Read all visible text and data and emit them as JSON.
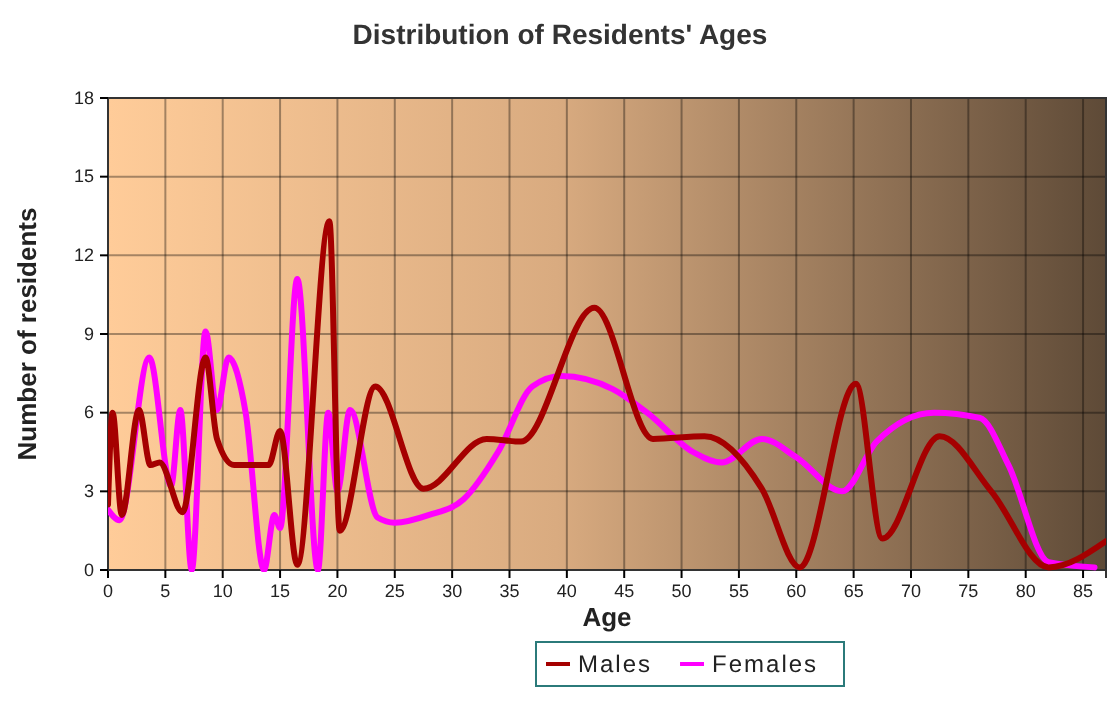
{
  "chart_data": {
    "type": "line",
    "title": "Distribution of Residents' Ages",
    "xlabel": "Age",
    "ylabel": "Number of residents",
    "xlim": [
      0,
      87
    ],
    "xticks": [
      0,
      5,
      10,
      15,
      20,
      25,
      30,
      35,
      40,
      45,
      50,
      55,
      60,
      65,
      70,
      75,
      80,
      85
    ],
    "ylim": [
      0,
      18
    ],
    "yticks": [
      0,
      3,
      6,
      9,
      12,
      15,
      18
    ],
    "grid": true,
    "legend": "bottom",
    "series": [
      {
        "name": "Males",
        "color": "#a50000",
        "x": [
          0,
          0.4,
          1.2,
          2.7,
          3.7,
          4.5,
          6.5,
          8.5,
          9.5,
          11,
          14,
          15,
          16.5,
          19.3,
          20.2,
          23.3,
          27.5,
          33,
          36,
          42.4,
          47.5,
          52,
          57,
          60.3,
          65.2,
          67.5,
          72.5,
          77,
          82,
          87
        ],
        "values": [
          2.5,
          6,
          2.1,
          6.1,
          4,
          4.1,
          2.2,
          8.1,
          5,
          4,
          4,
          5.3,
          0.2,
          13.3,
          1.5,
          7,
          3.1,
          5,
          4.9,
          10,
          5,
          5.1,
          3.1,
          0.1,
          7.1,
          1.2,
          5.1,
          3,
          0.1,
          1.1
        ]
      },
      {
        "name": "Females",
        "color": "#ff00ff",
        "x": [
          0,
          1,
          3.6,
          5.5,
          6.3,
          7.3,
          8.5,
          9.5,
          10.5,
          12,
          13.6,
          14.5,
          15,
          16.5,
          18.3,
          19.2,
          20,
          21.1,
          23.5,
          25,
          28,
          31,
          34,
          37,
          39.5,
          44,
          47,
          51,
          53.5,
          57,
          60,
          64,
          67,
          72,
          76,
          78.5,
          82,
          86
        ],
        "values": [
          2.3,
          1.9,
          8.1,
          3.2,
          6.1,
          0,
          9.1,
          6.1,
          8.1,
          6,
          0,
          2.1,
          1.6,
          11.1,
          0,
          6,
          3,
          6.1,
          2,
          1.8,
          2.1,
          2.7,
          4.5,
          7,
          7.4,
          6.9,
          6,
          4.5,
          4.1,
          5,
          4.3,
          3,
          4.9,
          6,
          5.8,
          4,
          0.3,
          0.1
        ]
      }
    ]
  }
}
